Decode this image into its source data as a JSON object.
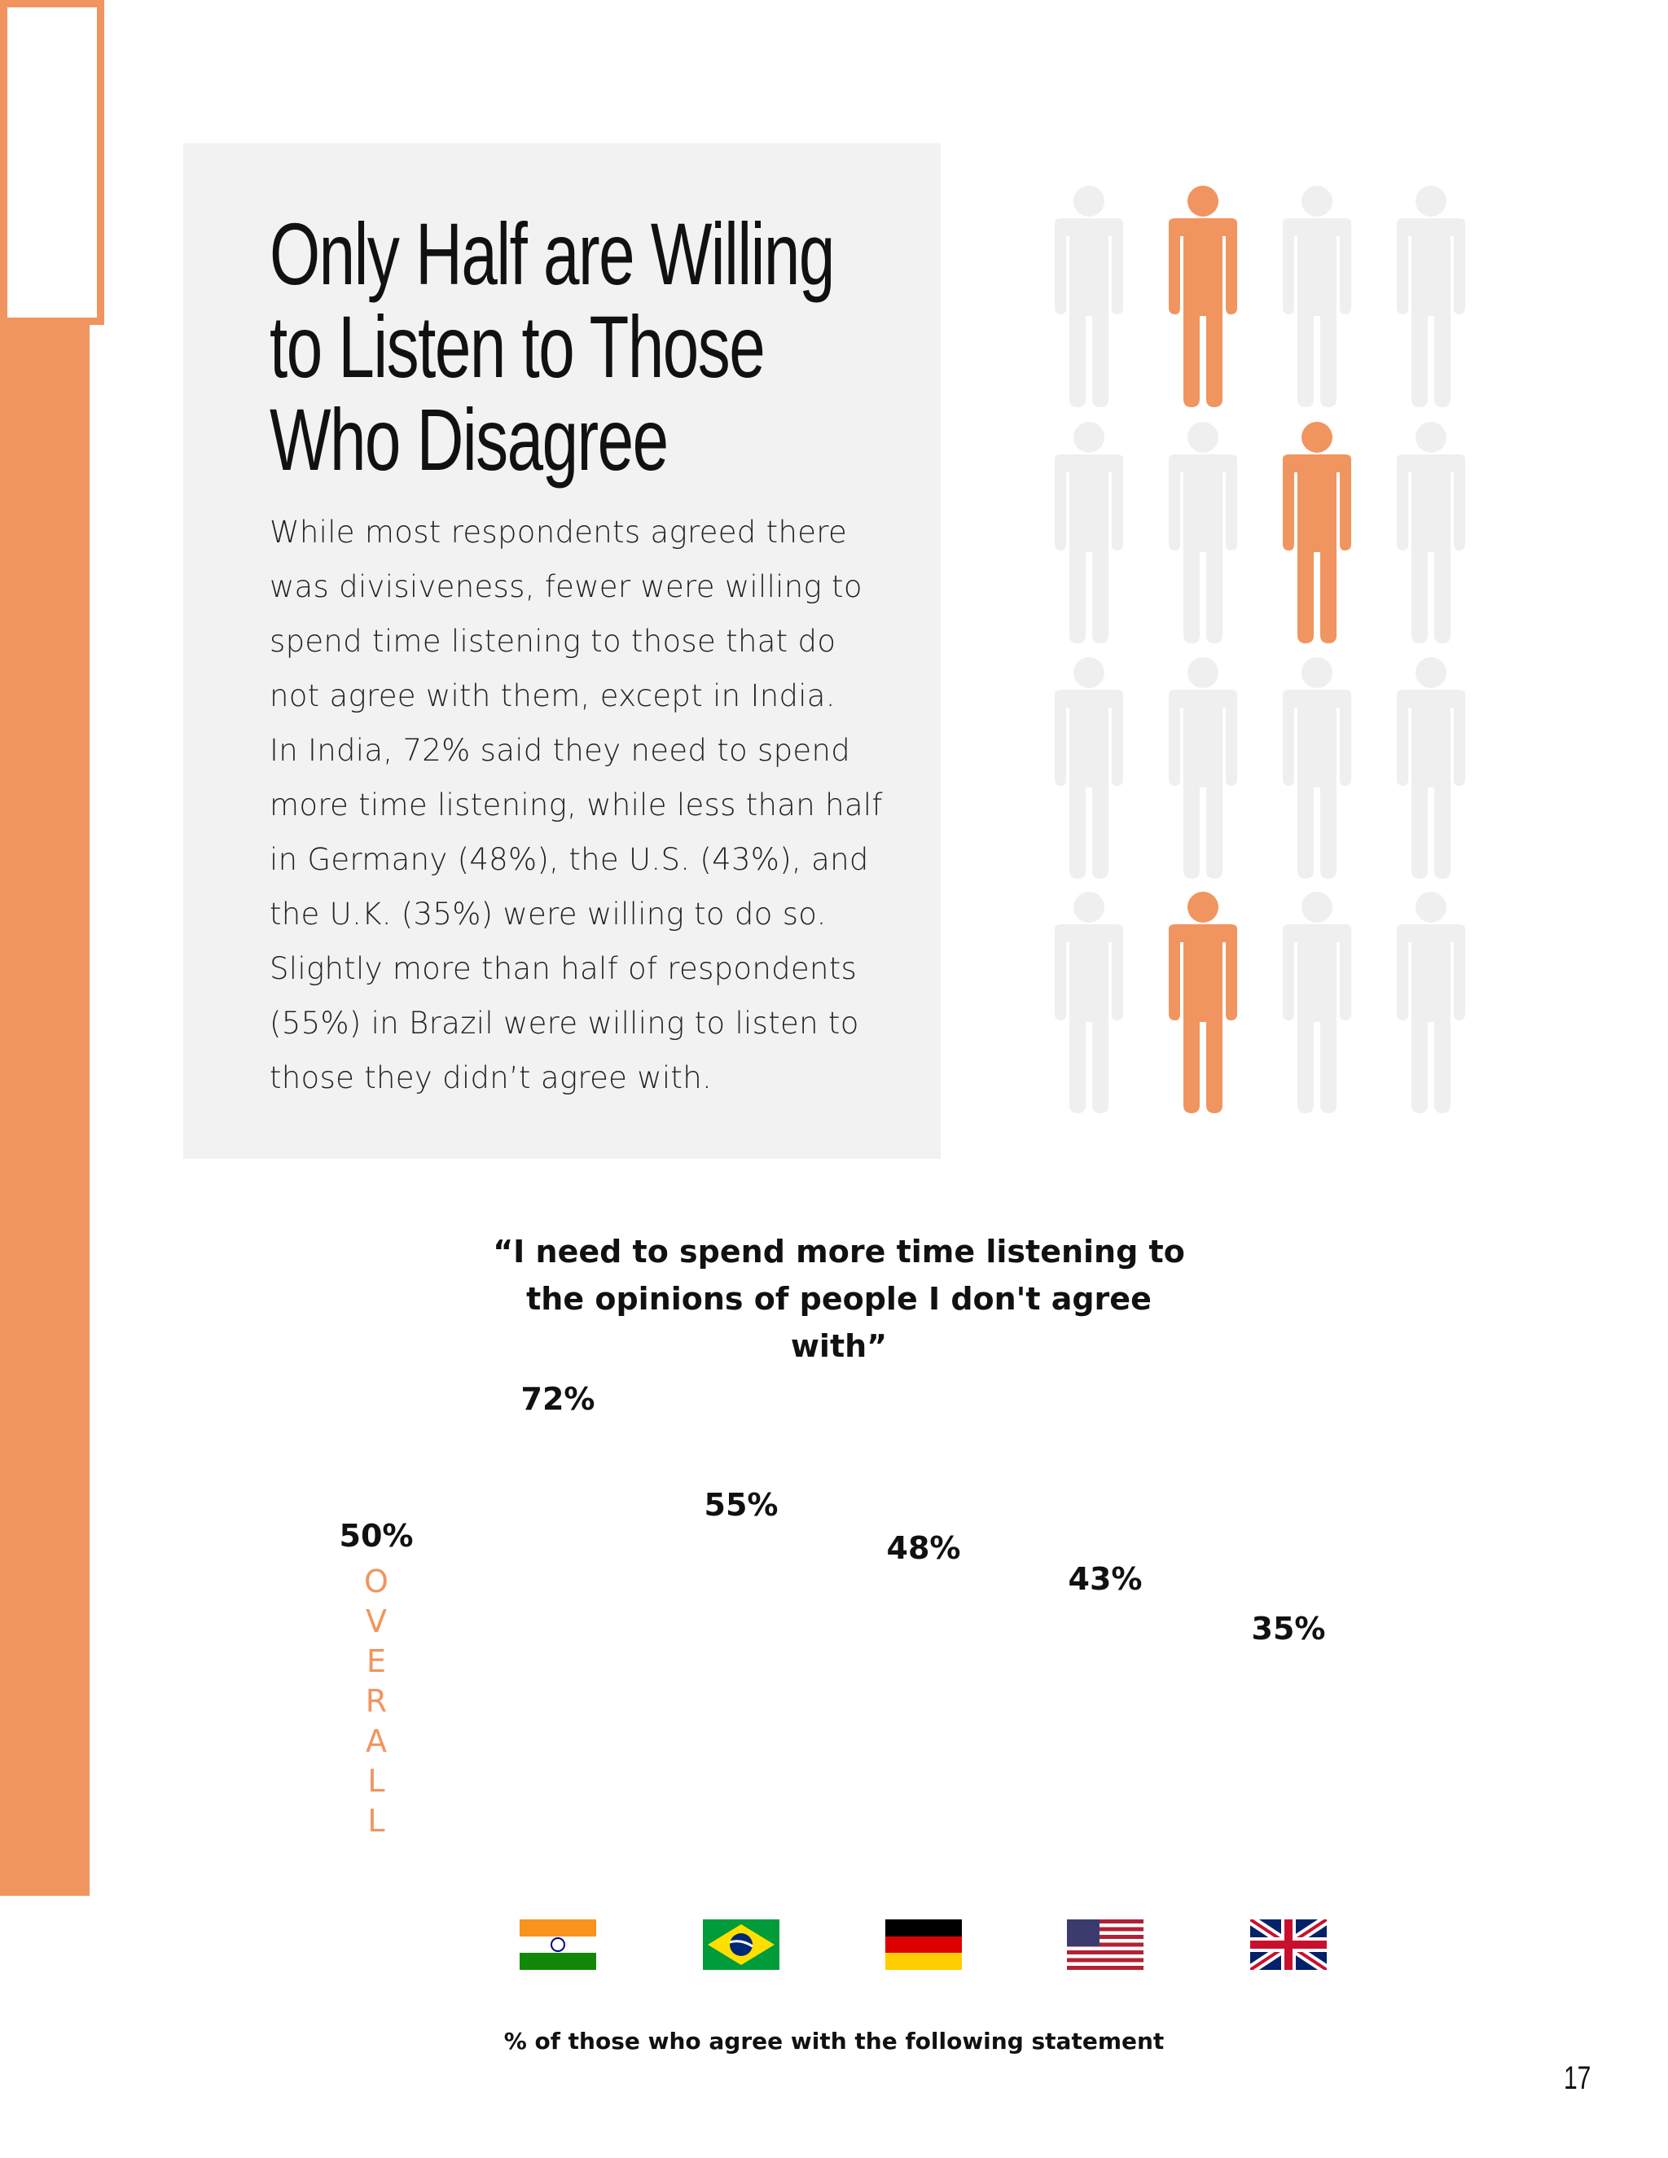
{
  "header": {
    "title_lines": [
      "Only Half are Willing",
      "to Listen to Those",
      "Who Disagree"
    ],
    "body_lines": [
      "While most respondents agreed there",
      "was divisiveness, fewer were willing to",
      "spend time listening to those that do",
      "not agree with them, except in India.",
      "In India, 72% said they need to spend",
      "more time listening, while less than half",
      "in Germany (48%), the U.S. (43%), and",
      "the U.K. (35%) were willing to do so.",
      "Slightly more than half of respondents",
      "(55%) in Brazil were willing to listen to",
      "those they didn’t agree with."
    ]
  },
  "chart_data": {
    "type": "bar",
    "title": "“I need to spend more time listening to the opinions of people I don't agree with”",
    "categories": [
      "OVERALL",
      "INDIA",
      "BRAZIL",
      "GERMANY",
      "USA",
      "UK"
    ],
    "values": [
      50,
      72,
      55,
      48,
      43,
      35
    ],
    "value_labels": [
      "50%",
      "72%",
      "55%",
      "48%",
      "43%",
      "35%"
    ],
    "color": "#f0955f",
    "first_bar_style": "outline",
    "x_label": "% of those who agree with the following statement"
  },
  "page_number": "17"
}
